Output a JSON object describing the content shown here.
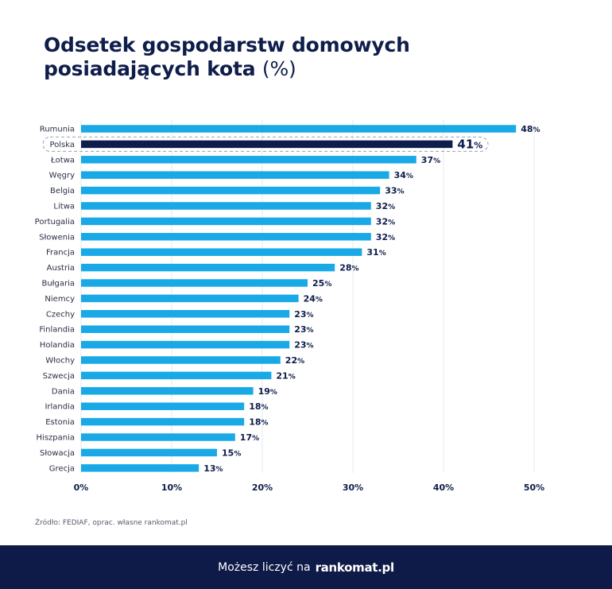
{
  "title": {
    "line1": "Odsetek gospodarstw domowych",
    "line2": "posiadających kota",
    "unit": "(%)"
  },
  "source": "Źródło: FEDIAF, oprac. własne rankomat.pl",
  "footer": {
    "text": "Możesz liczyć na",
    "brand": "rankomat.pl"
  },
  "colors": {
    "bar": "#19a9e6",
    "highlight_bar": "#0f1d4a",
    "text": "#0f1d4a",
    "footer_bg": "#0e1a47"
  },
  "chart_data": {
    "type": "bar",
    "orientation": "horizontal",
    "categories": [
      "Rumunia",
      "Polska",
      "Łotwa",
      "Węgry",
      "Belgia",
      "Litwa",
      "Portugalia",
      "Słowenia",
      "Francja",
      "Austria",
      "Bułgaria",
      "Niemcy",
      "Czechy",
      "Finlandia",
      "Holandia",
      "Włochy",
      "Szwecja",
      "Dania",
      "Irlandia",
      "Estonia",
      "Hiszpania",
      "Słowacja",
      "Grecja"
    ],
    "values": [
      48,
      41,
      37,
      34,
      33,
      32,
      32,
      32,
      31,
      28,
      25,
      24,
      23,
      23,
      23,
      22,
      21,
      19,
      18,
      18,
      17,
      15,
      13
    ],
    "value_suffix": "%",
    "highlight": "Polska",
    "xlim": [
      0,
      50
    ],
    "xticks": [
      0,
      10,
      20,
      30,
      40,
      50
    ],
    "xtick_labels": [
      "0%",
      "10%",
      "20%",
      "30%",
      "40%",
      "50%"
    ],
    "grid": "vertical",
    "legend": "none"
  }
}
